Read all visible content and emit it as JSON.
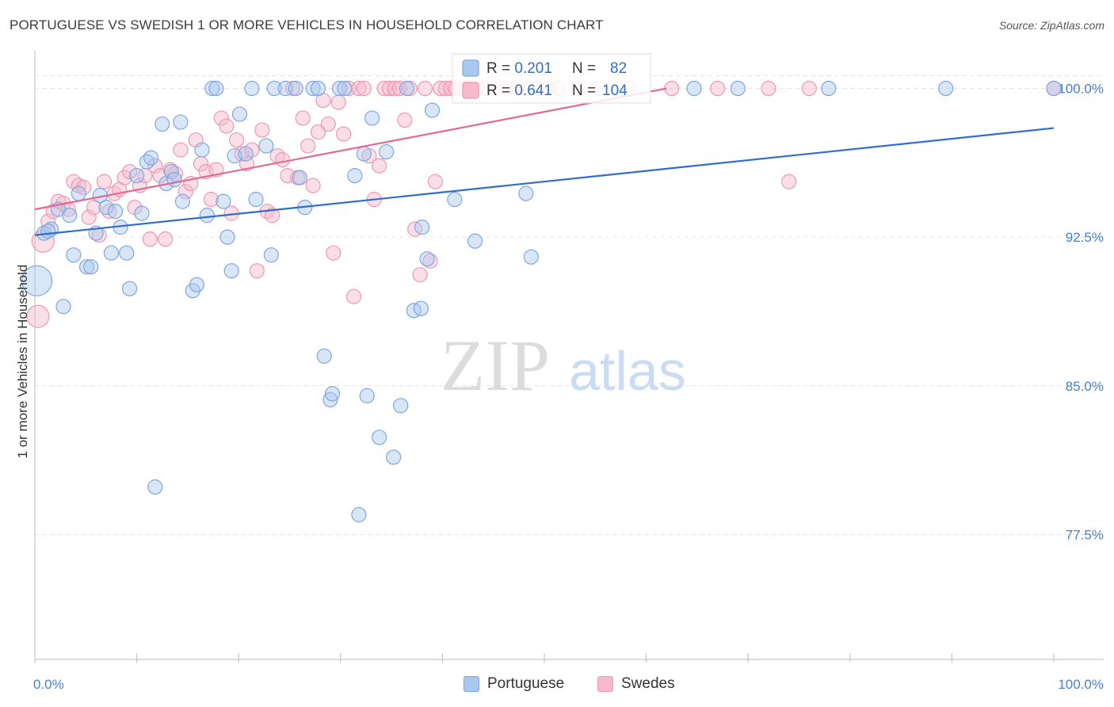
{
  "title": "PORTUGUESE VS SWEDISH 1 OR MORE VEHICLES IN HOUSEHOLD CORRELATION CHART",
  "source": "Source: ZipAtlas.com",
  "watermark": {
    "zip": "ZIP",
    "atlas": "atlas"
  },
  "colors": {
    "blue_fill": "#a9c8f0",
    "blue_stroke": "#7ea7e0",
    "blue_line": "#2f6fcb",
    "pink_fill": "#f7b9cc",
    "pink_stroke": "#ee98b3",
    "pink_line": "#e06a92",
    "axis_text": "#4a7fd0",
    "grid": "#e2e2e2",
    "value_text": "#2f6fcb"
  },
  "legend_top": [
    {
      "r_label": "R = ",
      "r_value": "0.201",
      "n_label": "N = ",
      "n_value": "82",
      "series": "blue"
    },
    {
      "r_label": "R = ",
      "r_value": "0.641",
      "n_label": "N = ",
      "n_value": "104",
      "series": "pink"
    }
  ],
  "legend_bottom": [
    {
      "label": "Portuguese",
      "series": "blue"
    },
    {
      "label": "Swedes",
      "series": "pink"
    }
  ],
  "chart_data": {
    "type": "scatter",
    "title": "PORTUGUESE VS SWEDISH 1 OR MORE VEHICLES IN HOUSEHOLD CORRELATION CHART",
    "xlabel": "",
    "ylabel": "1 or more Vehicles in Household",
    "xlim": [
      0,
      100
    ],
    "ylim": [
      71.2,
      101.9
    ],
    "x_tick_labels": [
      "0.0%",
      "100.0%"
    ],
    "y_ticks": [
      100.0,
      92.5,
      85.0,
      77.5
    ],
    "y_tick_labels": [
      "100.0%",
      "92.5%",
      "85.0%",
      "77.5%"
    ],
    "grid": true,
    "series": [
      {
        "name": "Portuguese",
        "color": "blue",
        "R": 0.201,
        "N": 82,
        "trend": {
          "x0": 0,
          "y0": 92.6,
          "x1": 100,
          "y1": 98.0
        },
        "points": [
          [
            0.2,
            90.3,
            18
          ],
          [
            0.9,
            92.7,
            8
          ],
          [
            1.6,
            92.9,
            8
          ],
          [
            1.3,
            92.8,
            8
          ],
          [
            2.3,
            93.9,
            8
          ],
          [
            2.8,
            89.0,
            8
          ],
          [
            3.4,
            93.6,
            8
          ],
          [
            3.8,
            91.6,
            8
          ],
          [
            4.3,
            94.7,
            8
          ],
          [
            5.1,
            91.0,
            8
          ],
          [
            5.5,
            91.0,
            8
          ],
          [
            6.0,
            92.7,
            8
          ],
          [
            6.4,
            94.6,
            8
          ],
          [
            7.0,
            94.0,
            8
          ],
          [
            7.5,
            91.7,
            8
          ],
          [
            7.9,
            93.8,
            8
          ],
          [
            8.4,
            93.0,
            8
          ],
          [
            9.0,
            91.7,
            8
          ],
          [
            9.3,
            89.9,
            8
          ],
          [
            10.0,
            95.6,
            8
          ],
          [
            10.5,
            93.7,
            8
          ],
          [
            11.0,
            96.3,
            8
          ],
          [
            11.4,
            96.5,
            8
          ],
          [
            11.8,
            79.9,
            8
          ],
          [
            12.5,
            98.2,
            8
          ],
          [
            12.9,
            95.2,
            8
          ],
          [
            13.4,
            95.8,
            8
          ],
          [
            13.7,
            95.4,
            8
          ],
          [
            14.3,
            98.3,
            8
          ],
          [
            14.5,
            94.3,
            8
          ],
          [
            15.5,
            89.8,
            8
          ],
          [
            15.9,
            90.1,
            8
          ],
          [
            16.4,
            96.9,
            8
          ],
          [
            16.9,
            93.6,
            8
          ],
          [
            17.4,
            100.0,
            8
          ],
          [
            17.8,
            100.0,
            8
          ],
          [
            18.5,
            94.3,
            8
          ],
          [
            18.9,
            92.5,
            8
          ],
          [
            19.3,
            90.8,
            8
          ],
          [
            19.6,
            96.6,
            8
          ],
          [
            20.1,
            98.7,
            8
          ],
          [
            20.7,
            96.7,
            8
          ],
          [
            21.3,
            100.0,
            8
          ],
          [
            21.7,
            94.4,
            8
          ],
          [
            22.7,
            97.1,
            8
          ],
          [
            23.2,
            91.6,
            8
          ],
          [
            23.5,
            100.0,
            8
          ],
          [
            24.6,
            100.0,
            8
          ],
          [
            25.6,
            100.0,
            8
          ],
          [
            26.0,
            95.5,
            8
          ],
          [
            26.5,
            94.0,
            8
          ],
          [
            27.3,
            100.0,
            8
          ],
          [
            27.8,
            100.0,
            8
          ],
          [
            28.4,
            86.5,
            8
          ],
          [
            29.0,
            84.3,
            8
          ],
          [
            29.2,
            84.6,
            8
          ],
          [
            29.9,
            100.0,
            8
          ],
          [
            30.4,
            100.0,
            8
          ],
          [
            31.4,
            95.6,
            8
          ],
          [
            31.8,
            78.5,
            8
          ],
          [
            32.3,
            96.7,
            8
          ],
          [
            32.6,
            84.5,
            8
          ],
          [
            33.1,
            98.5,
            8
          ],
          [
            33.8,
            82.4,
            8
          ],
          [
            34.5,
            96.8,
            8
          ],
          [
            35.2,
            81.4,
            8
          ],
          [
            35.9,
            84.0,
            8
          ],
          [
            36.5,
            100.0,
            8
          ],
          [
            37.2,
            88.8,
            8
          ],
          [
            37.9,
            88.9,
            8
          ],
          [
            38.0,
            93.0,
            8
          ],
          [
            38.5,
            91.4,
            8
          ],
          [
            39.0,
            98.9,
            8
          ],
          [
            41.2,
            94.4,
            8
          ],
          [
            43.2,
            92.3,
            8
          ],
          [
            48.2,
            94.7,
            8
          ],
          [
            48.7,
            91.5,
            8
          ],
          [
            64.7,
            100.0,
            8
          ],
          [
            69.0,
            100.0,
            8
          ],
          [
            77.9,
            100.0,
            8
          ],
          [
            89.4,
            100.0,
            8
          ],
          [
            100.0,
            100.0,
            8
          ]
        ]
      },
      {
        "name": "Swedes",
        "color": "pink",
        "R": 0.641,
        "N": 104,
        "trend": {
          "x0": 0,
          "y0": 93.9,
          "x1": 62,
          "y1": 100.0
        },
        "points": [
          [
            0.3,
            88.5,
            13
          ],
          [
            0.8,
            92.3,
            13
          ],
          [
            1.3,
            93.3,
            8
          ],
          [
            1.8,
            93.8,
            8
          ],
          [
            2.3,
            94.3,
            8
          ],
          [
            2.8,
            94.2,
            8
          ],
          [
            3.3,
            93.9,
            8
          ],
          [
            3.8,
            95.3,
            8
          ],
          [
            4.3,
            95.1,
            8
          ],
          [
            4.8,
            95.0,
            8
          ],
          [
            5.3,
            93.5,
            8
          ],
          [
            5.8,
            94.0,
            8
          ],
          [
            6.3,
            92.6,
            8
          ],
          [
            6.8,
            95.3,
            8
          ],
          [
            7.3,
            93.8,
            8
          ],
          [
            7.8,
            94.7,
            8
          ],
          [
            8.3,
            94.9,
            8
          ],
          [
            8.8,
            95.5,
            8
          ],
          [
            9.3,
            95.8,
            8
          ],
          [
            9.8,
            94.0,
            8
          ],
          [
            10.3,
            95.1,
            8
          ],
          [
            10.8,
            95.6,
            8
          ],
          [
            11.3,
            92.4,
            8
          ],
          [
            11.8,
            96.1,
            8
          ],
          [
            12.3,
            95.6,
            8
          ],
          [
            12.8,
            92.4,
            8
          ],
          [
            13.3,
            95.9,
            8
          ],
          [
            13.8,
            95.7,
            8
          ],
          [
            14.3,
            96.9,
            8
          ],
          [
            14.8,
            94.8,
            8
          ],
          [
            15.3,
            95.2,
            8
          ],
          [
            15.8,
            97.4,
            8
          ],
          [
            16.3,
            96.2,
            8
          ],
          [
            16.8,
            95.8,
            8
          ],
          [
            17.3,
            94.4,
            8
          ],
          [
            17.8,
            95.9,
            8
          ],
          [
            18.3,
            98.5,
            8
          ],
          [
            18.8,
            98.1,
            8
          ],
          [
            19.3,
            93.7,
            8
          ],
          [
            19.8,
            97.4,
            8
          ],
          [
            20.3,
            96.7,
            8
          ],
          [
            20.8,
            96.2,
            8
          ],
          [
            21.3,
            96.9,
            8
          ],
          [
            21.8,
            90.8,
            8
          ],
          [
            22.3,
            97.9,
            8
          ],
          [
            22.8,
            93.8,
            8
          ],
          [
            23.3,
            93.6,
            8
          ],
          [
            23.8,
            96.6,
            8
          ],
          [
            24.3,
            96.4,
            8
          ],
          [
            24.8,
            95.6,
            8
          ],
          [
            25.3,
            100.0,
            8
          ],
          [
            25.8,
            95.5,
            8
          ],
          [
            26.3,
            98.5,
            8
          ],
          [
            26.8,
            97.1,
            8
          ],
          [
            27.3,
            95.1,
            8
          ],
          [
            27.8,
            97.8,
            8
          ],
          [
            28.3,
            99.4,
            8
          ],
          [
            28.8,
            98.2,
            8
          ],
          [
            29.3,
            91.7,
            8
          ],
          [
            29.8,
            99.3,
            8
          ],
          [
            30.3,
            97.7,
            8
          ],
          [
            30.8,
            100.0,
            8
          ],
          [
            31.3,
            89.5,
            8
          ],
          [
            31.8,
            100.0,
            8
          ],
          [
            32.3,
            100.0,
            8
          ],
          [
            32.8,
            96.6,
            8
          ],
          [
            33.3,
            94.4,
            8
          ],
          [
            33.8,
            96.1,
            8
          ],
          [
            34.3,
            100.0,
            8
          ],
          [
            34.8,
            100.0,
            8
          ],
          [
            35.3,
            100.0,
            8
          ],
          [
            35.8,
            100.0,
            8
          ],
          [
            36.3,
            98.4,
            8
          ],
          [
            36.8,
            100.0,
            8
          ],
          [
            37.3,
            92.9,
            8
          ],
          [
            37.8,
            90.6,
            8
          ],
          [
            38.3,
            100.0,
            8
          ],
          [
            38.8,
            91.3,
            8
          ],
          [
            39.3,
            95.3,
            8
          ],
          [
            39.8,
            100.0,
            8
          ],
          [
            40.3,
            100.0,
            8
          ],
          [
            40.8,
            100.0,
            8
          ],
          [
            41.3,
            100.0,
            8
          ],
          [
            41.8,
            100.0,
            8
          ],
          [
            42.3,
            100.0,
            8
          ],
          [
            42.8,
            100.0,
            8
          ],
          [
            43.3,
            100.0,
            8
          ],
          [
            44.3,
            100.0,
            8
          ],
          [
            45.3,
            100.0,
            8
          ],
          [
            46.3,
            100.0,
            8
          ],
          [
            47.3,
            100.0,
            8
          ],
          [
            48.3,
            100.0,
            8
          ],
          [
            49.3,
            100.0,
            8
          ],
          [
            50.3,
            100.0,
            8
          ],
          [
            51.3,
            100.0,
            8
          ],
          [
            53.3,
            100.0,
            8
          ],
          [
            55.3,
            100.0,
            8
          ],
          [
            58.3,
            100.0,
            8
          ],
          [
            62.5,
            100.0,
            8
          ],
          [
            67.0,
            100.0,
            8
          ],
          [
            72.0,
            100.0,
            8
          ],
          [
            74.0,
            95.3,
            8
          ],
          [
            76.0,
            100.0,
            8
          ],
          [
            100.0,
            100.0,
            8
          ]
        ]
      }
    ]
  }
}
